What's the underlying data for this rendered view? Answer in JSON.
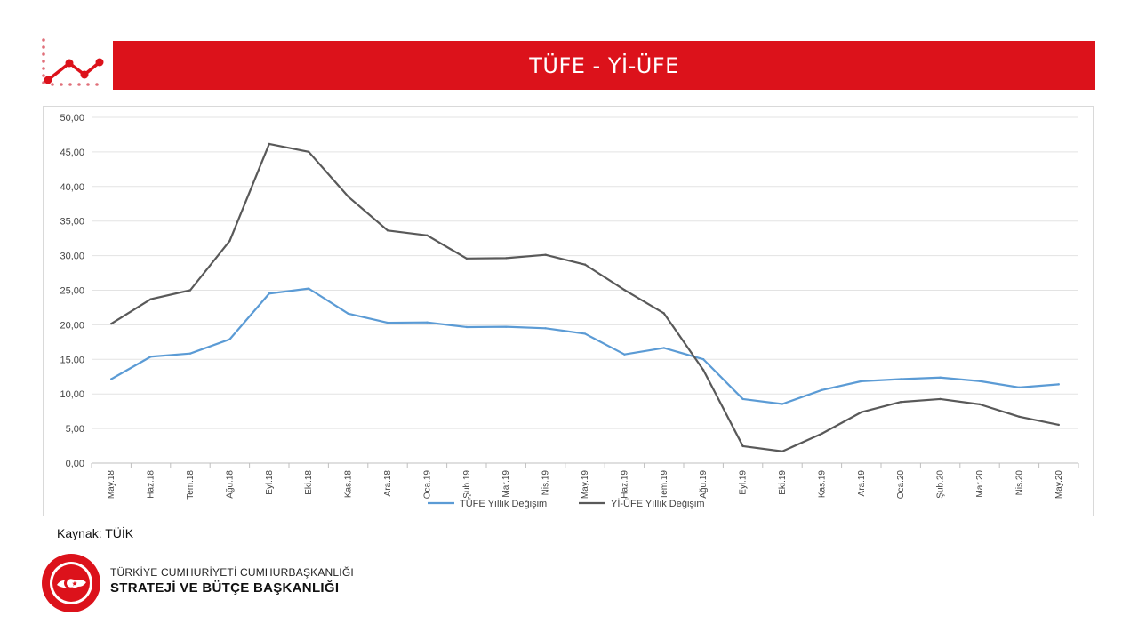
{
  "header": {
    "title": "TÜFE - Yİ-ÜFE"
  },
  "footer": {
    "source": "Kaynak: TÜİK",
    "org_line1": "TÜRKİYE CUMHURİYETİ CUMHURBAŞKANLIĞI",
    "org_line2": "STRATEJİ VE BÜTÇE BAŞKANLIĞI",
    "seal_text": "T.C. CUMHURBAŞKANLIĞI STRATEJİ VE BÜTÇE BAŞKANLIĞI"
  },
  "colors": {
    "brand_red": "#dc121b",
    "series_1": "#5b9bd5",
    "series_2": "#595959"
  },
  "chart_data": {
    "type": "line",
    "categories": [
      "May.18",
      "Haz.18",
      "Tem.18",
      "Ağu.18",
      "Eyl.18",
      "Eki.18",
      "Kas.18",
      "Ara.18",
      "Oca.19",
      "Şub.19",
      "Mar.19",
      "Nis.19",
      "May.19",
      "Haz.19",
      "Tem.19",
      "Ağu.19",
      "Eyl.19",
      "Eki.19",
      "Kas.19",
      "Ara.19",
      "Oca.20",
      "Şub.20",
      "Mar.20",
      "Nis.20",
      "May.20"
    ],
    "series": [
      {
        "name": "TÜFE Yıllık Değişim",
        "color": "#5b9bd5",
        "values": [
          12.15,
          15.39,
          15.85,
          17.9,
          24.52,
          25.24,
          21.62,
          20.3,
          20.35,
          19.67,
          19.71,
          19.5,
          18.71,
          15.72,
          16.65,
          15.01,
          9.26,
          8.55,
          10.56,
          11.84,
          12.15,
          12.37,
          11.86,
          10.94,
          11.39
        ]
      },
      {
        "name": "Yİ-ÜFE Yıllık Değişim",
        "color": "#595959",
        "values": [
          20.16,
          23.71,
          25.0,
          32.13,
          46.15,
          45.01,
          38.54,
          33.64,
          32.93,
          29.59,
          29.64,
          30.12,
          28.71,
          25.04,
          21.66,
          13.45,
          2.45,
          1.7,
          4.26,
          7.36,
          8.84,
          9.26,
          8.5,
          6.71,
          5.53
        ]
      }
    ],
    "yticks": [
      "0,00",
      "5,00",
      "10,00",
      "15,00",
      "20,00",
      "25,00",
      "30,00",
      "35,00",
      "40,00",
      "45,00",
      "50,00"
    ],
    "ylim": [
      0,
      50
    ],
    "grid": true,
    "legend_position": "bottom"
  }
}
